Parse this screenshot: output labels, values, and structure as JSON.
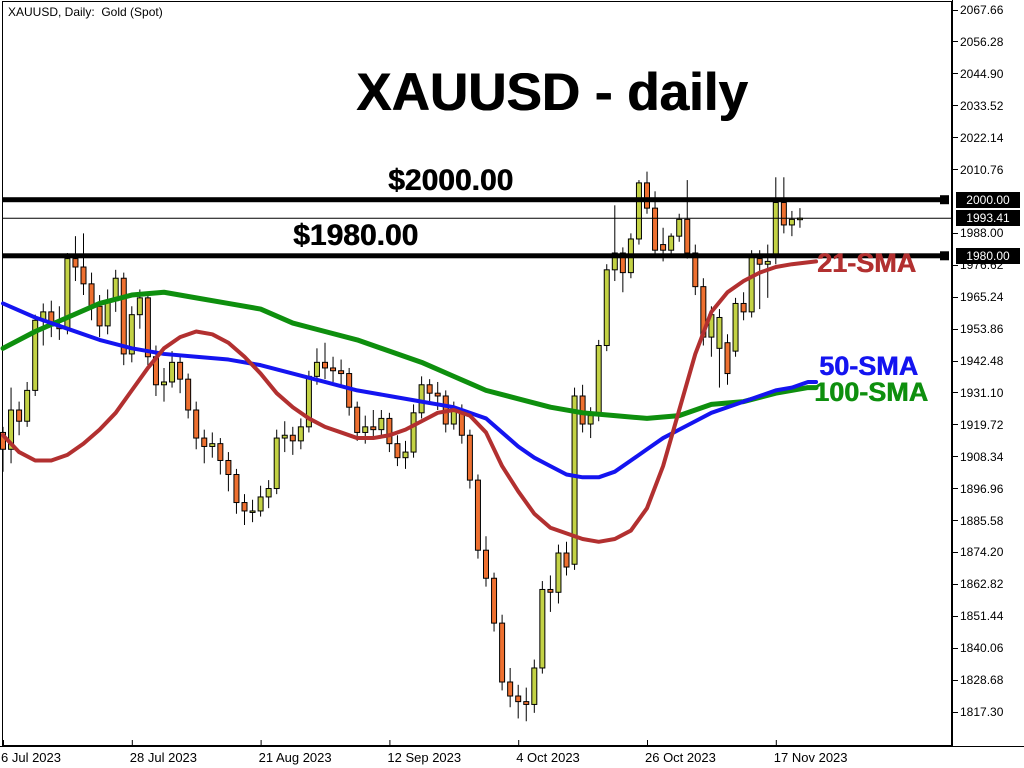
{
  "app": {
    "symbol_line": "XAUUSD, Daily:  Gold (Spot)",
    "title": "XAUUSD - daily"
  },
  "annotations": {
    "level_2000": "$2000.00",
    "level_1980": "$1980.00",
    "sma21": "21-SMA",
    "sma50": "50-SMA",
    "sma100": "100-SMA"
  },
  "colors": {
    "background": "#FFFFFF",
    "frame": "#000000",
    "bull_body": "#C3D245",
    "bear_body": "#EE7030",
    "candle_outline": "#000000",
    "sma21": "#B23030",
    "sma50": "#1414F0",
    "sma100": "#0E8F0E",
    "level_line": "#000000",
    "badge_bg": "#000000",
    "badge_text": "#FFFFFF"
  },
  "price_axis": {
    "max_label_price": 2067.66,
    "min_label_price": 1817.3,
    "step": 11.38,
    "labels": [
      "2067.66",
      "2056.28",
      "2044.90",
      "2033.52",
      "2022.14",
      "2010.76",
      "1988.00",
      "1976.62",
      "1965.24",
      "1953.86",
      "1942.48",
      "1931.10",
      "1919.72",
      "1908.34",
      "1896.96",
      "1885.58",
      "1874.20",
      "1862.82",
      "1851.44",
      "1840.06",
      "1828.68",
      "1817.30"
    ],
    "badges": [
      {
        "text": "2000.00",
        "price": 2000.0,
        "kind": "level"
      },
      {
        "text": "1993.41",
        "price": 1993.41,
        "kind": "current-price"
      },
      {
        "text": "1980.00",
        "price": 1980.0,
        "kind": "level"
      }
    ]
  },
  "time_axis": {
    "ticks": [
      {
        "label": "6 Jul 2023",
        "index": 0
      },
      {
        "label": "28 Jul 2023",
        "index": 16
      },
      {
        "label": "21 Aug 2023",
        "index": 32
      },
      {
        "label": "12 Sep 2023",
        "index": 48
      },
      {
        "label": "4 Oct 2023",
        "index": 64
      },
      {
        "label": "26 Oct 2023",
        "index": 80
      },
      {
        "label": "17 Nov 2023",
        "index": 96
      }
    ]
  },
  "chart_data": {
    "type": "candlestick",
    "symbol": "XAUUSD",
    "timeframe": "Daily",
    "description": "Gold (Spot)",
    "current_price": 1993.41,
    "horizontal_levels": [
      2000.0,
      1980.0
    ],
    "y_range": [
      1817.3,
      2067.66
    ],
    "grid": false,
    "candles_ohlc": [
      [
        1917,
        1919,
        1903,
        1911
      ],
      [
        1911,
        1933,
        1906,
        1925
      ],
      [
        1925,
        1928,
        1916,
        1921
      ],
      [
        1921,
        1935,
        1919,
        1932
      ],
      [
        1932,
        1959,
        1930,
        1957
      ],
      [
        1957,
        1963,
        1948,
        1960
      ],
      [
        1960,
        1964,
        1951,
        1955
      ],
      [
        1955,
        1962,
        1950,
        1954
      ],
      [
        1954,
        1981,
        1952,
        1979
      ],
      [
        1979,
        1987,
        1971,
        1976
      ],
      [
        1976,
        1988,
        1966,
        1970
      ],
      [
        1970,
        1974,
        1957,
        1962
      ],
      [
        1962,
        1966,
        1951,
        1955
      ],
      [
        1955,
        1968,
        1952,
        1964
      ],
      [
        1964,
        1975,
        1960,
        1972
      ],
      [
        1972,
        1974,
        1941,
        1945
      ],
      [
        1945,
        1962,
        1942,
        1959
      ],
      [
        1959,
        1968,
        1954,
        1965
      ],
      [
        1965,
        1966,
        1941,
        1944
      ],
      [
        1944,
        1948,
        1930,
        1934
      ],
      [
        1934,
        1940,
        1928,
        1935
      ],
      [
        1935,
        1946,
        1933,
        1942
      ],
      [
        1942,
        1944,
        1931,
        1936
      ],
      [
        1936,
        1938,
        1922,
        1925
      ],
      [
        1925,
        1928,
        1911,
        1915
      ],
      [
        1915,
        1918,
        1906,
        1912
      ],
      [
        1912,
        1917,
        1908,
        1913
      ],
      [
        1913,
        1915,
        1902,
        1907
      ],
      [
        1907,
        1910,
        1896,
        1902
      ],
      [
        1902,
        1904,
        1888,
        1892
      ],
      [
        1892,
        1895,
        1884,
        1889
      ],
      [
        1889,
        1893,
        1885,
        1889
      ],
      [
        1889,
        1898,
        1887,
        1894
      ],
      [
        1894,
        1900,
        1890,
        1897
      ],
      [
        1897,
        1918,
        1895,
        1915
      ],
      [
        1915,
        1921,
        1910,
        1916
      ],
      [
        1916,
        1919,
        1909,
        1914
      ],
      [
        1914,
        1922,
        1911,
        1919
      ],
      [
        1919,
        1939,
        1917,
        1937
      ],
      [
        1937,
        1947,
        1934,
        1942
      ],
      [
        1942,
        1949,
        1936,
        1940
      ],
      [
        1940,
        1944,
        1935,
        1939
      ],
      [
        1939,
        1943,
        1934,
        1938
      ],
      [
        1938,
        1940,
        1923,
        1926
      ],
      [
        1926,
        1928,
        1914,
        1917
      ],
      [
        1917,
        1923,
        1913,
        1919
      ],
      [
        1919,
        1925,
        1915,
        1918
      ],
      [
        1918,
        1925,
        1915,
        1922
      ],
      [
        1922,
        1924,
        1910,
        1913
      ],
      [
        1913,
        1916,
        1905,
        1908
      ],
      [
        1908,
        1914,
        1904,
        1910
      ],
      [
        1910,
        1927,
        1908,
        1924
      ],
      [
        1924,
        1937,
        1922,
        1934
      ],
      [
        1934,
        1936,
        1927,
        1931
      ],
      [
        1931,
        1935,
        1925,
        1930
      ],
      [
        1930,
        1932,
        1917,
        1920
      ],
      [
        1920,
        1928,
        1918,
        1925
      ],
      [
        1925,
        1927,
        1913,
        1916
      ],
      [
        1916,
        1918,
        1897,
        1900
      ],
      [
        1900,
        1902,
        1872,
        1875
      ],
      [
        1875,
        1880,
        1862,
        1865
      ],
      [
        1865,
        1867,
        1846,
        1849
      ],
      [
        1849,
        1852,
        1825,
        1828
      ],
      [
        1828,
        1833,
        1819,
        1823
      ],
      [
        1823,
        1827,
        1815,
        1821
      ],
      [
        1821,
        1826,
        1814,
        1820
      ],
      [
        1820,
        1836,
        1817,
        1833
      ],
      [
        1833,
        1864,
        1831,
        1861
      ],
      [
        1861,
        1866,
        1853,
        1860
      ],
      [
        1860,
        1877,
        1856,
        1874
      ],
      [
        1874,
        1878,
        1866,
        1869
      ],
      [
        1870,
        1933,
        1868,
        1930
      ],
      [
        1930,
        1934,
        1917,
        1920
      ],
      [
        1920,
        1926,
        1915,
        1923
      ],
      [
        1924,
        1950,
        1921,
        1948
      ],
      [
        1948,
        1977,
        1946,
        1975
      ],
      [
        1975,
        1998,
        1971,
        1981
      ],
      [
        1981,
        1983,
        1967,
        1974
      ],
      [
        1974,
        1988,
        1972,
        1986
      ],
      [
        1986,
        2007,
        1984,
        2006
      ],
      [
        2006,
        2010,
        1995,
        1997
      ],
      [
        1997,
        2003,
        1980,
        1982
      ],
      [
        1984,
        1990,
        1978,
        1982
      ],
      [
        1982,
        1988,
        1980,
        1987
      ],
      [
        1987,
        1995,
        1985,
        1993
      ],
      [
        1993,
        2007,
        1979,
        1981
      ],
      [
        1981,
        1984,
        1966,
        1969
      ],
      [
        1969,
        1972,
        1948,
        1951
      ],
      [
        1951,
        1962,
        1944,
        1959
      ],
      [
        1947,
        1961,
        1933,
        1958
      ],
      [
        1949,
        1952,
        1934,
        1938
      ],
      [
        1946,
        1965,
        1944,
        1963
      ],
      [
        1963,
        1967,
        1957,
        1960
      ],
      [
        1960,
        1982,
        1958,
        1980
      ],
      [
        1979,
        1982,
        1961,
        1977
      ],
      [
        1977,
        1984,
        1965,
        1978
      ],
      [
        1980,
        2008,
        1977,
        1999
      ],
      [
        1999,
        2008,
        1988,
        1991
      ],
      [
        1991,
        1996,
        1987,
        1993
      ],
      [
        1993,
        1997,
        1990,
        1993.41
      ]
    ],
    "overlays": [
      {
        "name": "21-SMA",
        "color": "#B23030",
        "width": 4,
        "points": [
          [
            0,
            1916
          ],
          [
            2,
            1910
          ],
          [
            4,
            1907
          ],
          [
            6,
            1907
          ],
          [
            8,
            1909
          ],
          [
            10,
            1913
          ],
          [
            12,
            1918
          ],
          [
            14,
            1924
          ],
          [
            16,
            1932
          ],
          [
            18,
            1940
          ],
          [
            20,
            1947
          ],
          [
            22,
            1951
          ],
          [
            24,
            1953
          ],
          [
            26,
            1952
          ],
          [
            28,
            1949
          ],
          [
            30,
            1944
          ],
          [
            32,
            1938
          ],
          [
            34,
            1931
          ],
          [
            36,
            1926
          ],
          [
            38,
            1922
          ],
          [
            40,
            1919
          ],
          [
            42,
            1917
          ],
          [
            44,
            1915
          ],
          [
            46,
            1915
          ],
          [
            48,
            1916
          ],
          [
            50,
            1918
          ],
          [
            52,
            1921
          ],
          [
            54,
            1924
          ],
          [
            56,
            1925
          ],
          [
            58,
            1923
          ],
          [
            60,
            1917
          ],
          [
            62,
            1905
          ],
          [
            64,
            1896
          ],
          [
            66,
            1888
          ],
          [
            68,
            1883
          ],
          [
            70,
            1881
          ],
          [
            72,
            1879
          ],
          [
            74,
            1878
          ],
          [
            76,
            1879
          ],
          [
            78,
            1882
          ],
          [
            80,
            1890
          ],
          [
            82,
            1905
          ],
          [
            84,
            1925
          ],
          [
            86,
            1945
          ],
          [
            88,
            1960
          ],
          [
            90,
            1967
          ],
          [
            92,
            1971
          ],
          [
            94,
            1974
          ],
          [
            96,
            1976
          ],
          [
            98,
            1977
          ],
          [
            101,
            1978
          ]
        ]
      },
      {
        "name": "50-SMA",
        "color": "#1414F0",
        "width": 4,
        "points": [
          [
            0,
            1963
          ],
          [
            4,
            1958
          ],
          [
            8,
            1954
          ],
          [
            12,
            1950
          ],
          [
            16,
            1947
          ],
          [
            20,
            1945
          ],
          [
            24,
            1944
          ],
          [
            28,
            1943
          ],
          [
            32,
            1941
          ],
          [
            36,
            1938
          ],
          [
            40,
            1935
          ],
          [
            44,
            1932
          ],
          [
            48,
            1930
          ],
          [
            52,
            1928
          ],
          [
            56,
            1926
          ],
          [
            60,
            1922
          ],
          [
            62,
            1917
          ],
          [
            64,
            1912
          ],
          [
            66,
            1908
          ],
          [
            68,
            1905
          ],
          [
            70,
            1902
          ],
          [
            72,
            1901
          ],
          [
            74,
            1901
          ],
          [
            76,
            1903
          ],
          [
            78,
            1907
          ],
          [
            80,
            1911
          ],
          [
            82,
            1915
          ],
          [
            84,
            1918
          ],
          [
            86,
            1921
          ],
          [
            88,
            1924
          ],
          [
            90,
            1926
          ],
          [
            92,
            1928
          ],
          [
            94,
            1930
          ],
          [
            96,
            1932
          ],
          [
            98,
            1933
          ],
          [
            100,
            1935
          ],
          [
            101,
            1935
          ]
        ]
      },
      {
        "name": "100-SMA",
        "color": "#0E8F0E",
        "width": 5,
        "points": [
          [
            0,
            1947
          ],
          [
            4,
            1953
          ],
          [
            8,
            1958
          ],
          [
            12,
            1963
          ],
          [
            16,
            1966
          ],
          [
            20,
            1967
          ],
          [
            24,
            1965
          ],
          [
            28,
            1963
          ],
          [
            32,
            1961
          ],
          [
            36,
            1956
          ],
          [
            40,
            1953
          ],
          [
            44,
            1950
          ],
          [
            48,
            1946
          ],
          [
            52,
            1942
          ],
          [
            56,
            1937
          ],
          [
            60,
            1932
          ],
          [
            64,
            1929
          ],
          [
            68,
            1926
          ],
          [
            72,
            1924
          ],
          [
            76,
            1923
          ],
          [
            80,
            1922
          ],
          [
            84,
            1923
          ],
          [
            88,
            1927
          ],
          [
            92,
            1928
          ],
          [
            96,
            1931
          ],
          [
            100,
            1933
          ],
          [
            101,
            1933
          ]
        ]
      }
    ]
  }
}
